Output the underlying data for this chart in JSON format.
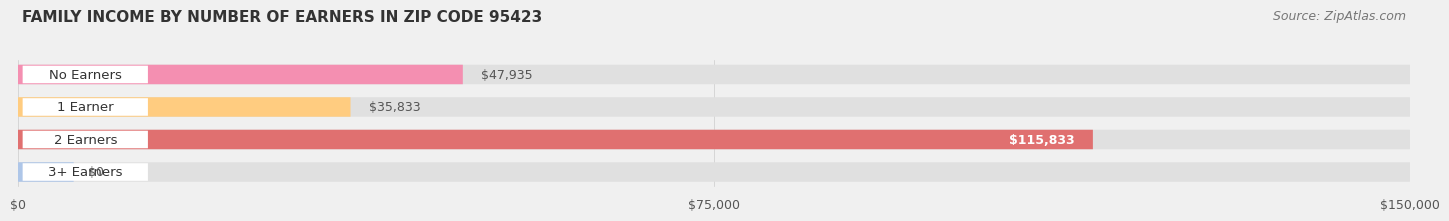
{
  "title": "FAMILY INCOME BY NUMBER OF EARNERS IN ZIP CODE 95423",
  "source": "Source: ZipAtlas.com",
  "categories": [
    "No Earners",
    "1 Earner",
    "2 Earners",
    "3+ Earners"
  ],
  "values": [
    47935,
    35833,
    115833,
    0
  ],
  "bar_colors": [
    "#f48fb1",
    "#ffcc80",
    "#e07070",
    "#aec6e8"
  ],
  "bar_labels": [
    "$47,935",
    "$35,833",
    "$115,833",
    "$0"
  ],
  "label_inside_2earners": true,
  "xlim": [
    0,
    150000
  ],
  "xticks": [
    0,
    75000,
    150000
  ],
  "xtick_labels": [
    "$0",
    "$75,000",
    "$150,000"
  ],
  "background_color": "#f0f0f0",
  "bar_bg_color": "#e0e0e0",
  "title_fontsize": 11,
  "source_fontsize": 9,
  "label_fontsize": 9,
  "tick_fontsize": 9,
  "category_fontsize": 9.5
}
